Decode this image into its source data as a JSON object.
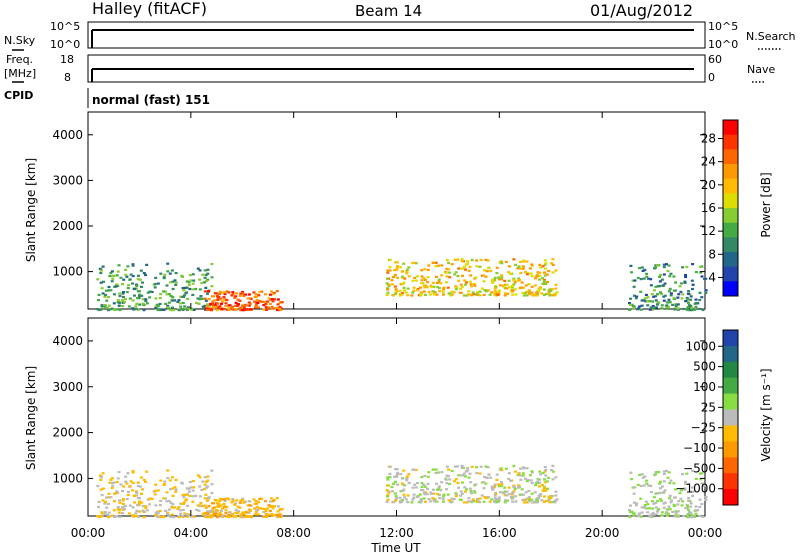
{
  "header": {
    "station": "Halley (fitACF)",
    "beam": "Beam 14",
    "date": "01/Aug/2012"
  },
  "aux_panels": {
    "nsky": {
      "label": "N.Sky",
      "tick_top": "10^5",
      "tick_bottom": "10^0"
    },
    "nsearch": {
      "label": "N.Search",
      "tick_top": "10^5",
      "tick_bottom": "10^0"
    },
    "freq": {
      "label_top": "Freq.",
      "label_unit": "[MHz]",
      "tick_top": "18",
      "tick_bottom": "8"
    },
    "nave": {
      "label": "Nave",
      "tick_top": "60",
      "tick_bottom": "0"
    },
    "cpid": {
      "label": "CPID",
      "value": "normal (fast) 151"
    }
  },
  "colorbars": {
    "power": {
      "label": "Power [dB]",
      "ticks": [
        "28",
        "24",
        "20",
        "16",
        "12",
        "8",
        "4"
      ],
      "colors": [
        "#ff0000",
        "#ff3300",
        "#ff6600",
        "#ff9900",
        "#ffbb00",
        "#dddd00",
        "#88cc33",
        "#44aa44",
        "#338866",
        "#226688",
        "#2244aa",
        "#0000ff"
      ]
    },
    "velocity": {
      "label": "Velocity [m s⁻¹]",
      "ticks": [
        "1000",
        "500",
        "100",
        "25",
        "−25",
        "−100",
        "−500",
        "−1000"
      ],
      "colors": [
        "#2244aa",
        "#226688",
        "#228844",
        "#44aa44",
        "#88dd44",
        "#bbbbbb",
        "#ffbb00",
        "#ff9900",
        "#ff6600",
        "#ff3300",
        "#ff0000"
      ]
    }
  },
  "chart_data": [
    {
      "type": "heatmap",
      "panel": "power",
      "ylabel": "Slant Range [km]",
      "yticks": [
        "1000",
        "2000",
        "3000",
        "4000"
      ],
      "ylim": [
        180,
        4500
      ],
      "xlim_hours": [
        0,
        24
      ],
      "quantity": "Power [dB]",
      "echo_regions": [
        {
          "t0": 0.3,
          "t1": 4.8,
          "r0": 180,
          "r1": 1200,
          "v": 10
        },
        {
          "t0": 4.5,
          "t1": 7.5,
          "r0": 180,
          "r1": 600,
          "v": 24
        },
        {
          "t0": 11.5,
          "t1": 18.2,
          "r0": 500,
          "r1": 1300,
          "v": 18
        },
        {
          "t0": 21.0,
          "t1": 24.0,
          "r0": 180,
          "r1": 1200,
          "v": 9
        }
      ]
    },
    {
      "type": "heatmap",
      "panel": "velocity",
      "ylabel": "Slant Range [km]",
      "xlabel": "Time UT",
      "xticks": [
        "00:00",
        "04:00",
        "08:00",
        "12:00",
        "16:00",
        "20:00",
        "00:00"
      ],
      "yticks": [
        "1000",
        "2000",
        "3000",
        "4000"
      ],
      "ylim": [
        180,
        4500
      ],
      "xlim_hours": [
        0,
        24
      ],
      "quantity": "Velocity [m s-1]",
      "echo_regions": [
        {
          "t0": 0.3,
          "t1": 4.8,
          "r0": 180,
          "r1": 1200,
          "v": -100
        },
        {
          "t0": 4.5,
          "t1": 7.5,
          "r0": 180,
          "r1": 600,
          "v": -200
        },
        {
          "t0": 11.5,
          "t1": 18.2,
          "r0": 500,
          "r1": 1300,
          "v": 10
        },
        {
          "t0": 21.0,
          "t1": 24.0,
          "r0": 180,
          "r1": 1200,
          "v": 60
        }
      ]
    }
  ]
}
